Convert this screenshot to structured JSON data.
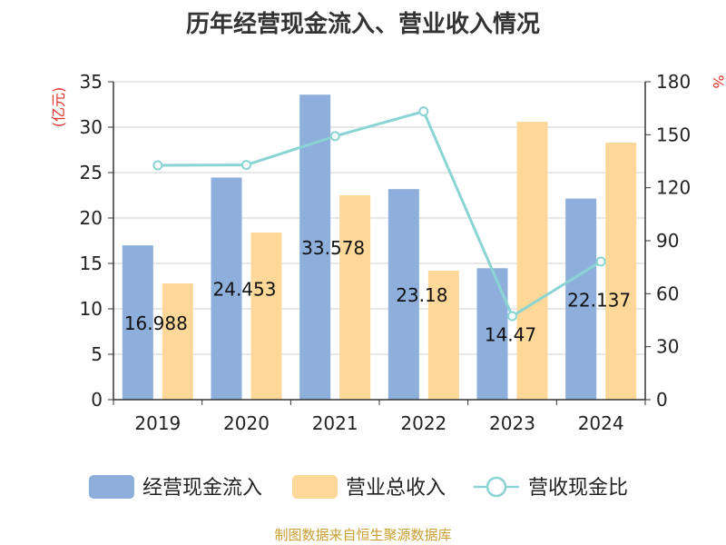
{
  "title": "历年经营现金流入、营业收入情况",
  "source": "制图数据来自恒生聚源数据库",
  "colors": {
    "cash_inflow": "#8eaedb",
    "revenue": "#fdd898",
    "ratio": "#8ad4d4",
    "axis_label": "#e0302a",
    "grid": "#d0d0d0",
    "axis": "#333333",
    "text": "#222222"
  },
  "chart_data": {
    "type": "bar",
    "title": "历年经营现金流入、营业收入情况",
    "categories": [
      "2019",
      "2020",
      "2021",
      "2022",
      "2023",
      "2024"
    ],
    "y_left": {
      "label": "(亿元)",
      "min": 0,
      "max": 35,
      "ticks": [
        0,
        5,
        10,
        15,
        20,
        25,
        30,
        35
      ]
    },
    "y_right": {
      "label": "%",
      "min": 0,
      "max": 180,
      "ticks": [
        0,
        30,
        60,
        90,
        120,
        150,
        180
      ]
    },
    "grid": true,
    "legend_position": "bottom",
    "series": [
      {
        "name": "经营现金流入",
        "type": "bar",
        "axis": "left",
        "values": [
          16.988,
          24.453,
          33.578,
          23.18,
          14.47,
          22.137
        ],
        "labels": [
          "16.988",
          "24.453",
          "33.578",
          "23.18",
          "14.47",
          "22.137"
        ]
      },
      {
        "name": "营业总收入",
        "type": "bar",
        "axis": "left",
        "values": [
          12.8,
          18.4,
          22.5,
          14.2,
          30.6,
          28.3
        ]
      },
      {
        "name": "营收现金比",
        "type": "line",
        "axis": "right",
        "values": [
          132.7,
          132.9,
          149.2,
          163.2,
          47.3,
          78.2
        ]
      }
    ]
  }
}
